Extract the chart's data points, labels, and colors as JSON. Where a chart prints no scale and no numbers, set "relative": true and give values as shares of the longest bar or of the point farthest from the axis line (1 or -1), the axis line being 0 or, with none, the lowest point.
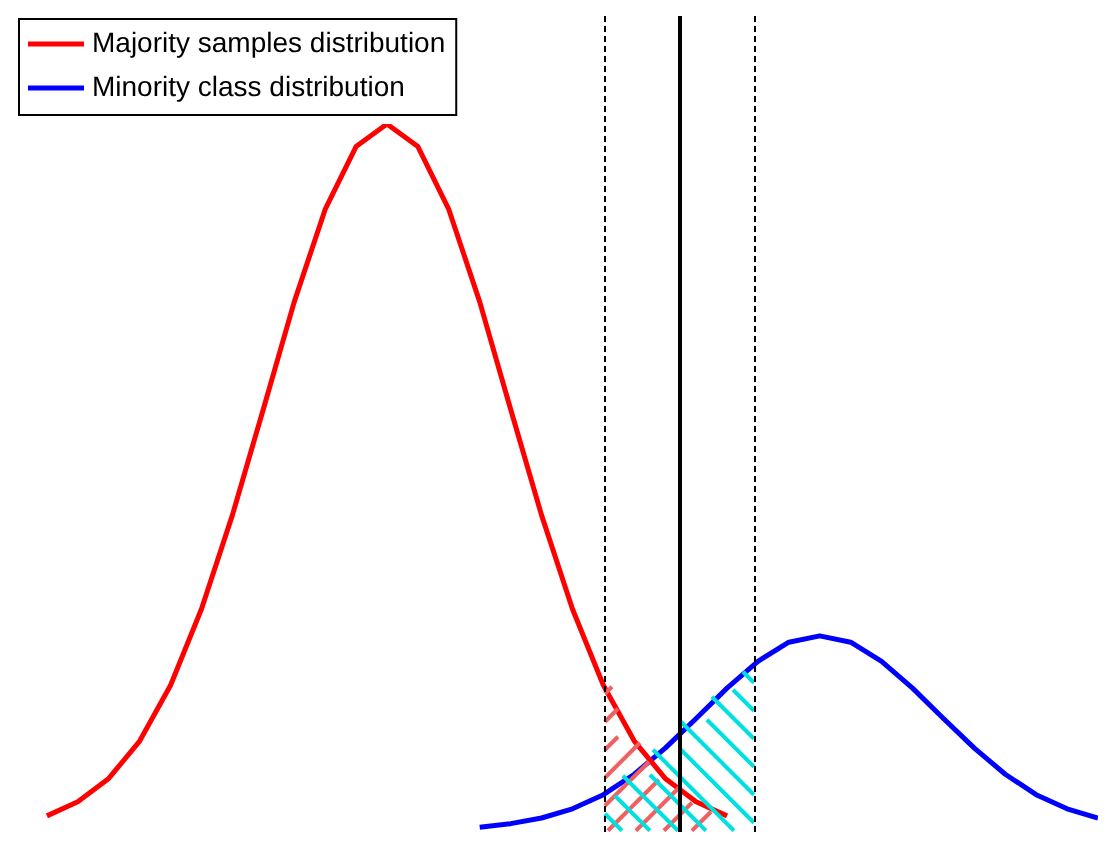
{
  "chart_data": {
    "type": "line",
    "relative": true,
    "tick_labels": false,
    "legend": "top left",
    "marker": "none",
    "line_style": "solid",
    "categories": [
      null,
      null,
      null,
      null,
      null,
      null,
      null,
      null,
      null,
      null,
      null,
      null,
      null,
      null,
      null,
      null,
      null,
      null,
      null,
      null,
      null,
      null,
      null,
      null,
      null,
      null,
      null,
      null,
      null,
      null,
      null,
      null,
      null,
      null,
      null,
      null
    ],
    "series": [
      {
        "name": "Majority samples distribution",
        "color": "#ff0000",
        "values": [
          null,
          0.02,
          0.04,
          0.073,
          0.126,
          0.205,
          0.313,
          0.446,
          0.596,
          0.748,
          0.879,
          0.968,
          1,
          0.968,
          0.879,
          0.748,
          0.596,
          0.446,
          0.313,
          0.205,
          0.126,
          0.073,
          0.04,
          0.02,
          null,
          null,
          null,
          null,
          null,
          null,
          null,
          null,
          null,
          null,
          null,
          null
        ]
      },
      {
        "name": "Minority class distribution",
        "color": "#0000ff",
        "values": [
          null,
          null,
          null,
          null,
          null,
          null,
          null,
          null,
          null,
          null,
          null,
          null,
          null,
          null,
          null,
          0.004,
          0.009,
          0.017,
          0.03,
          0.05,
          0.079,
          0.116,
          0.158,
          0.201,
          0.239,
          0.266,
          0.275,
          0.266,
          0.239,
          0.201,
          0.158,
          0.116,
          0.079,
          0.05,
          0.03,
          0.017
        ]
      }
    ]
  }
}
